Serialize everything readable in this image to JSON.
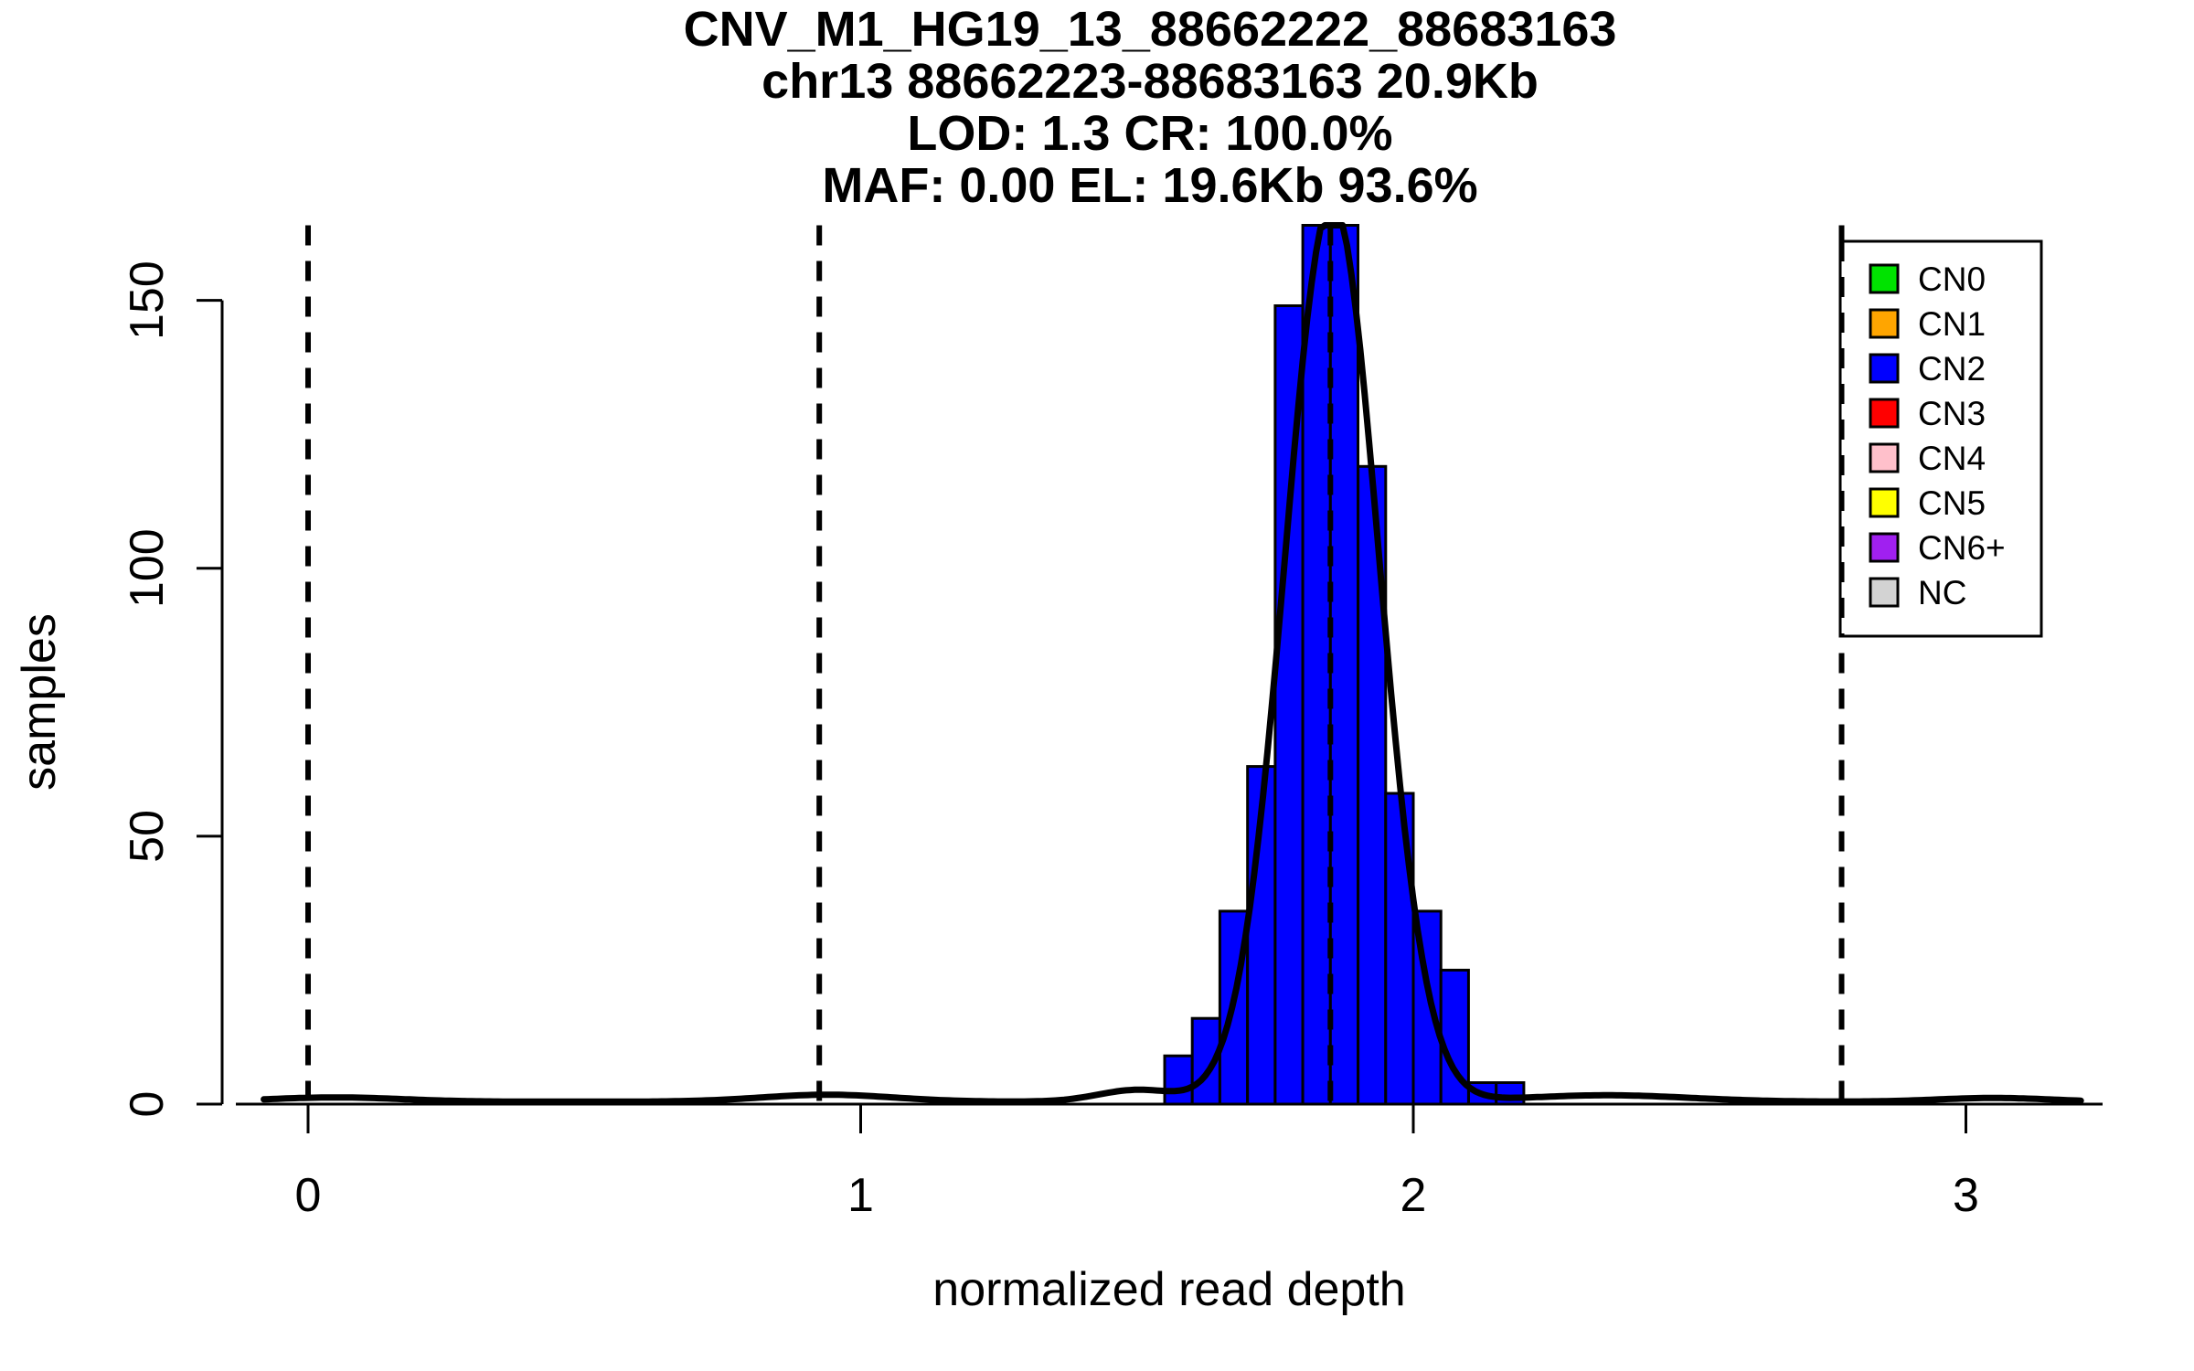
{
  "figure": {
    "title_lines": [
      "CNV_M1_HG19_13_88662222_88683163",
      "chr13 88662223-88683163 20.9Kb",
      "LOD: 1.3 CR: 100.0%",
      "MAF: 0.00 EL: 19.6Kb 93.6%"
    ],
    "xlabel": "normalized read depth",
    "ylabel": "samples"
  },
  "legend": {
    "items": [
      {
        "label": "CN0",
        "color": "#00E300"
      },
      {
        "label": "CN1",
        "color": "#FFA500"
      },
      {
        "label": "CN2",
        "color": "#0000FF"
      },
      {
        "label": "CN3",
        "color": "#FF0000"
      },
      {
        "label": "CN4",
        "color": "#FFC0CB"
      },
      {
        "label": "CN5",
        "color": "#FFFF00"
      },
      {
        "label": "CN6+",
        "color": "#A020F0"
      },
      {
        "label": "NC",
        "color": "#D3D3D3"
      }
    ]
  },
  "chart_data": {
    "type": "bar",
    "subtype": "histogram-with-density",
    "title": "CNV_M1_HG19_13_88662222_88683163",
    "subtitle_lines": [
      "chr13 88662223-88683163 20.9Kb",
      "LOD: 1.3 CR: 100.0%",
      "MAF: 0.00 EL: 19.6Kb 93.6%"
    ],
    "xlabel": "normalized read depth",
    "ylabel": "samples",
    "x_ticks": [
      0,
      1,
      2,
      3
    ],
    "y_ticks": [
      0,
      50,
      100,
      150
    ],
    "xlim": [
      -0.13,
      3.25
    ],
    "ylim": [
      0,
      164
    ],
    "grid": false,
    "legend_position": "top-right",
    "bar_color": "#0000FF",
    "bar_outline_color": "#000000",
    "histogram": {
      "bin_start": 1.55,
      "bin_width": 0.05,
      "bin_edges": [
        1.55,
        1.6,
        1.65,
        1.7,
        1.75,
        1.8,
        1.85,
        1.9,
        1.95,
        2.0,
        2.05,
        2.1,
        2.15,
        2.2
      ],
      "counts": [
        9,
        16,
        36,
        63,
        149,
        164,
        164,
        119,
        58,
        36,
        25,
        4,
        4
      ],
      "series_copy_number_state": "CN2"
    },
    "dashed_vlines_x": [
      0,
      0.925,
      1.85,
      2.775
    ],
    "density_curve": {
      "color": "#000000",
      "x_range": [
        -0.08,
        3.21
      ],
      "baseline": 0.45,
      "gaussian_components": [
        {
          "mu": 1.853,
          "sigma": 0.085,
          "amplitude": 168
        },
        {
          "mu": 0.94,
          "sigma": 0.12,
          "amplitude": 1.3
        },
        {
          "mu": 0.05,
          "sigma": 0.12,
          "amplitude": 0.8
        },
        {
          "mu": 1.5,
          "sigma": 0.07,
          "amplitude": 2.2
        },
        {
          "mu": 2.35,
          "sigma": 0.15,
          "amplitude": 1.2
        },
        {
          "mu": 3.05,
          "sigma": 0.1,
          "amplitude": 0.7
        }
      ]
    },
    "legend_entries": [
      "CN0",
      "CN1",
      "CN2",
      "CN3",
      "CN4",
      "CN5",
      "CN6+",
      "NC"
    ],
    "legend_colors": [
      "#00E300",
      "#FFA500",
      "#0000FF",
      "#FF0000",
      "#FFC0CB",
      "#FFFF00",
      "#A020F0",
      "#D3D3D3"
    ]
  }
}
